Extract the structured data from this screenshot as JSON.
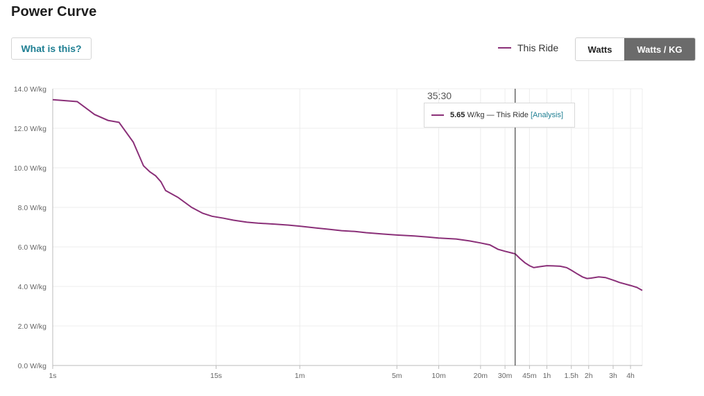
{
  "header": {
    "title": "Power Curve",
    "help_label": "What is this?"
  },
  "legend": {
    "label": "This Ride"
  },
  "toggle": {
    "watts_label": "Watts",
    "wkg_label": "Watts / KG",
    "selected": "Watts / KG"
  },
  "colors": {
    "series": "#8a2f78",
    "grid": "#ececec",
    "axis": "#bbbbbb"
  },
  "hover": {
    "time": "35:30",
    "value": "5.65",
    "unit_text": " W/kg — This Ride ",
    "bracket_open": "[",
    "link": "Analysis",
    "bracket_close": "]"
  },
  "chart_data": {
    "type": "line",
    "title": "Power Curve",
    "xlabel": "",
    "ylabel": "",
    "x_scale": "log",
    "xlim_seconds": [
      1,
      17500
    ],
    "ylim": [
      0,
      14
    ],
    "grid": true,
    "y_ticks": [
      {
        "value": 0,
        "label": "0.0 W/kg"
      },
      {
        "value": 2,
        "label": "2.0 W/kg"
      },
      {
        "value": 4,
        "label": "4.0 W/kg"
      },
      {
        "value": 6,
        "label": "6.0 W/kg"
      },
      {
        "value": 8,
        "label": "8.0 W/kg"
      },
      {
        "value": 10,
        "label": "10.0 W/kg"
      },
      {
        "value": 12,
        "label": "12.0 W/kg"
      },
      {
        "value": 14,
        "label": "14.0 W/kg"
      }
    ],
    "x_ticks": [
      {
        "seconds": 1,
        "label": "1s"
      },
      {
        "seconds": 15,
        "label": "15s"
      },
      {
        "seconds": 60,
        "label": "1m"
      },
      {
        "seconds": 300,
        "label": "5m"
      },
      {
        "seconds": 600,
        "label": "10m"
      },
      {
        "seconds": 1200,
        "label": "20m"
      },
      {
        "seconds": 1800,
        "label": "30m"
      },
      {
        "seconds": 2700,
        "label": "45m"
      },
      {
        "seconds": 3600,
        "label": "1h"
      },
      {
        "seconds": 5400,
        "label": "1.5h"
      },
      {
        "seconds": 7200,
        "label": "2h"
      },
      {
        "seconds": 10800,
        "label": "3h"
      },
      {
        "seconds": 14400,
        "label": "4h"
      }
    ],
    "hover_seconds": 2130,
    "series": [
      {
        "name": "This Ride",
        "points": [
          [
            1,
            13.45
          ],
          [
            1.5,
            13.35
          ],
          [
            2,
            12.7
          ],
          [
            2.5,
            12.4
          ],
          [
            3,
            12.3
          ],
          [
            3.8,
            11.3
          ],
          [
            4.5,
            10.1
          ],
          [
            5,
            9.8
          ],
          [
            5.5,
            9.6
          ],
          [
            6,
            9.3
          ],
          [
            6.5,
            8.85
          ],
          [
            8,
            8.5
          ],
          [
            10,
            8.0
          ],
          [
            12,
            7.7
          ],
          [
            14,
            7.55
          ],
          [
            17,
            7.45
          ],
          [
            20,
            7.35
          ],
          [
            25,
            7.25
          ],
          [
            30,
            7.2
          ],
          [
            40,
            7.15
          ],
          [
            50,
            7.1
          ],
          [
            60,
            7.05
          ],
          [
            80,
            6.95
          ],
          [
            100,
            6.88
          ],
          [
            120,
            6.82
          ],
          [
            150,
            6.78
          ],
          [
            180,
            6.72
          ],
          [
            240,
            6.65
          ],
          [
            300,
            6.6
          ],
          [
            400,
            6.55
          ],
          [
            500,
            6.5
          ],
          [
            600,
            6.45
          ],
          [
            800,
            6.4
          ],
          [
            1000,
            6.3
          ],
          [
            1200,
            6.2
          ],
          [
            1400,
            6.1
          ],
          [
            1600,
            5.88
          ],
          [
            1800,
            5.78
          ],
          [
            2000,
            5.7
          ],
          [
            2130,
            5.65
          ],
          [
            2300,
            5.42
          ],
          [
            2500,
            5.2
          ],
          [
            2700,
            5.05
          ],
          [
            2900,
            4.95
          ],
          [
            3200,
            5.0
          ],
          [
            3600,
            5.05
          ],
          [
            4000,
            5.04
          ],
          [
            4500,
            5.02
          ],
          [
            5000,
            4.95
          ],
          [
            5400,
            4.82
          ],
          [
            6000,
            4.62
          ],
          [
            6500,
            4.48
          ],
          [
            7000,
            4.4
          ],
          [
            7500,
            4.42
          ],
          [
            8500,
            4.48
          ],
          [
            9500,
            4.45
          ],
          [
            10800,
            4.32
          ],
          [
            12000,
            4.2
          ],
          [
            14400,
            4.05
          ],
          [
            16000,
            3.95
          ],
          [
            17500,
            3.8
          ]
        ]
      }
    ]
  }
}
